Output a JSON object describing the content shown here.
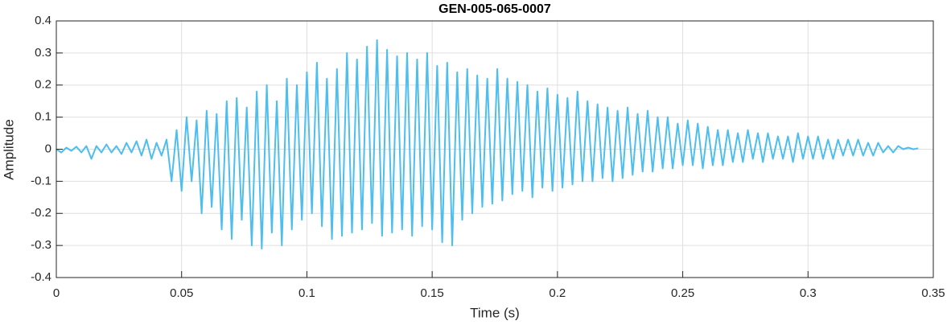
{
  "chart_data": {
    "type": "line",
    "title": "GEN-005-065-0007",
    "x_label": "Time (s)",
    "y_label": "Amplitude",
    "color": "#4dbeee",
    "grid": true,
    "xlim": [
      0,
      0.35
    ],
    "ylim": [
      -0.4,
      0.4
    ],
    "xticks": [
      0,
      0.05,
      0.1,
      0.15,
      0.2,
      0.25,
      0.3,
      0.35
    ],
    "yticks": [
      -0.4,
      -0.3,
      -0.2,
      -0.1,
      0,
      0.1,
      0.2,
      0.3,
      0.4
    ],
    "x": [
      0,
      0.002,
      0.004,
      0.006,
      0.008,
      0.01,
      0.012,
      0.014,
      0.016,
      0.018,
      0.02,
      0.022,
      0.024,
      0.026,
      0.028,
      0.03,
      0.032,
      0.034,
      0.036,
      0.038,
      0.04,
      0.042,
      0.044,
      0.046,
      0.048,
      0.05,
      0.052,
      0.054,
      0.056,
      0.058,
      0.06,
      0.062,
      0.064,
      0.066,
      0.068,
      0.07,
      0.072,
      0.074,
      0.076,
      0.078,
      0.08,
      0.082,
      0.084,
      0.086,
      0.088,
      0.09,
      0.092,
      0.094,
      0.096,
      0.098,
      0.1,
      0.102,
      0.104,
      0.106,
      0.108,
      0.11,
      0.112,
      0.114,
      0.116,
      0.118,
      0.12,
      0.122,
      0.124,
      0.126,
      0.128,
      0.13,
      0.132,
      0.134,
      0.136,
      0.138,
      0.14,
      0.142,
      0.144,
      0.146,
      0.148,
      0.15,
      0.152,
      0.154,
      0.156,
      0.158,
      0.16,
      0.162,
      0.164,
      0.166,
      0.168,
      0.17,
      0.172,
      0.174,
      0.176,
      0.178,
      0.18,
      0.182,
      0.184,
      0.186,
      0.188,
      0.19,
      0.192,
      0.194,
      0.196,
      0.198,
      0.2,
      0.202,
      0.204,
      0.206,
      0.208,
      0.21,
      0.212,
      0.214,
      0.216,
      0.218,
      0.22,
      0.222,
      0.224,
      0.226,
      0.228,
      0.23,
      0.232,
      0.234,
      0.236,
      0.238,
      0.24,
      0.242,
      0.244,
      0.246,
      0.248,
      0.25,
      0.252,
      0.254,
      0.256,
      0.258,
      0.26,
      0.262,
      0.264,
      0.266,
      0.268,
      0.27,
      0.272,
      0.274,
      0.276,
      0.278,
      0.28,
      0.282,
      0.284,
      0.286,
      0.288,
      0.29,
      0.292,
      0.294,
      0.296,
      0.298,
      0.3,
      0.302,
      0.304,
      0.306,
      0.308,
      0.31,
      0.312,
      0.314,
      0.316,
      0.318,
      0.32,
      0.322,
      0.324,
      0.326,
      0.328,
      0.33,
      0.332,
      0.334,
      0.336,
      0.338,
      0.34,
      0.342,
      0.344
    ],
    "values": [
      0,
      -0.01,
      0.005,
      -0.005,
      0.008,
      -0.01,
      0.01,
      -0.03,
      0.01,
      -0.01,
      0.015,
      -0.01,
      0.01,
      -0.015,
      0.02,
      -0.01,
      0.025,
      -0.02,
      0.03,
      -0.03,
      0.02,
      -0.02,
      0.03,
      -0.1,
      0.06,
      -0.13,
      0.1,
      -0.1,
      0.09,
      -0.2,
      0.12,
      -0.18,
      0.11,
      -0.25,
      0.15,
      -0.28,
      0.16,
      -0.22,
      0.13,
      -0.3,
      0.18,
      -0.31,
      0.2,
      -0.26,
      0.15,
      -0.3,
      0.22,
      -0.25,
      0.2,
      -0.22,
      0.24,
      -0.2,
      0.27,
      -0.24,
      0.22,
      -0.28,
      0.25,
      -0.27,
      0.3,
      -0.26,
      0.28,
      -0.25,
      0.32,
      -0.23,
      0.34,
      -0.27,
      0.31,
      -0.26,
      0.29,
      -0.25,
      0.3,
      -0.27,
      0.28,
      -0.24,
      0.3,
      -0.25,
      0.26,
      -0.29,
      0.27,
      -0.3,
      0.24,
      -0.22,
      0.25,
      -0.2,
      0.23,
      -0.18,
      0.22,
      -0.17,
      0.25,
      -0.16,
      0.22,
      -0.14,
      0.21,
      -0.13,
      0.2,
      -0.15,
      0.18,
      -0.12,
      0.19,
      -0.13,
      0.17,
      -0.12,
      0.16,
      -0.11,
      0.18,
      -0.1,
      0.15,
      -0.1,
      0.14,
      -0.09,
      0.13,
      -0.1,
      0.12,
      -0.09,
      0.13,
      -0.08,
      0.11,
      -0.07,
      0.12,
      -0.07,
      0.1,
      -0.06,
      0.1,
      -0.06,
      0.08,
      -0.05,
      0.09,
      -0.05,
      0.08,
      -0.06,
      0.07,
      -0.05,
      0.06,
      -0.05,
      0.06,
      -0.04,
      0.05,
      -0.04,
      0.06,
      -0.03,
      0.05,
      -0.04,
      0.05,
      -0.03,
      0.04,
      -0.03,
      0.04,
      -0.04,
      0.05,
      -0.03,
      0.04,
      -0.03,
      0.04,
      -0.03,
      0.03,
      -0.03,
      0.03,
      -0.02,
      0.03,
      -0.02,
      0.03,
      -0.02,
      0.02,
      -0.02,
      0.02,
      -0.01,
      0.01,
      -0.01,
      0.01,
      0,
      0.005,
      0,
      0.003
    ]
  }
}
